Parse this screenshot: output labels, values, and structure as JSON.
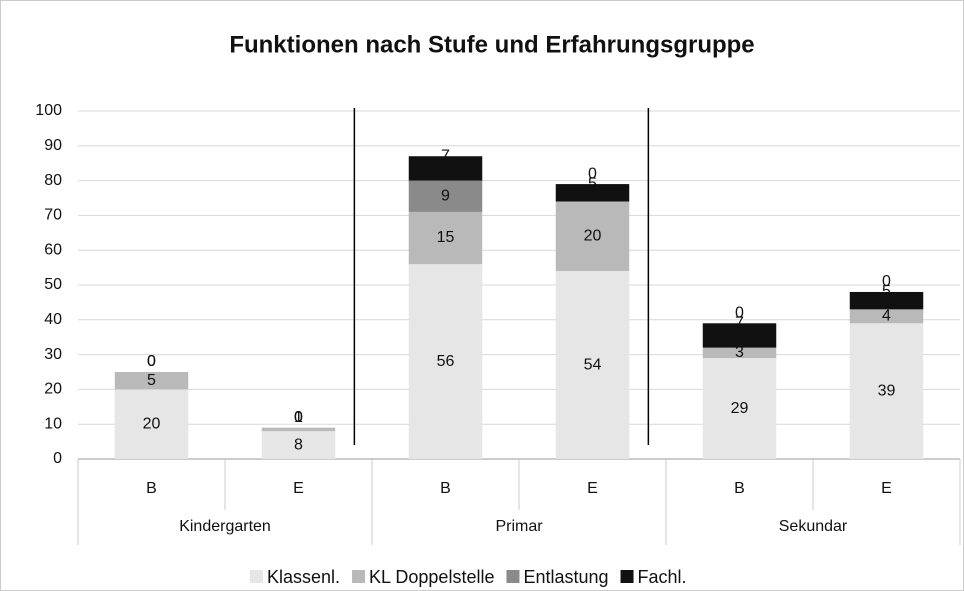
{
  "chart_data": {
    "type": "stacked_bar",
    "title": "Funktionen nach Stufe und Erfahrungsgruppe",
    "categories": [
      "B",
      "E",
      "B",
      "E",
      "B",
      "E"
    ],
    "groups": [
      "Kindergarten",
      "Primar",
      "Sekundar"
    ],
    "series": [
      {
        "name": "Klassenl.",
        "color": "#e6e6e6",
        "values": [
          20,
          8,
          56,
          54,
          29,
          39
        ]
      },
      {
        "name": "KL Doppelstelle",
        "color": "#b9b9b9",
        "values": [
          5,
          1,
          15,
          20,
          3,
          4
        ]
      },
      {
        "name": "Entlastung",
        "color": "#8a8a8a",
        "values": [
          0,
          0,
          9,
          0,
          0,
          0
        ]
      },
      {
        "name": "Fachl.",
        "color": "#111111",
        "values": [
          0,
          0,
          7,
          5,
          7,
          5
        ]
      }
    ],
    "ylim": [
      0,
      100
    ],
    "yticks": [
      0,
      10,
      20,
      30,
      40,
      50,
      60,
      70,
      80,
      90,
      100
    ],
    "grid": true
  }
}
